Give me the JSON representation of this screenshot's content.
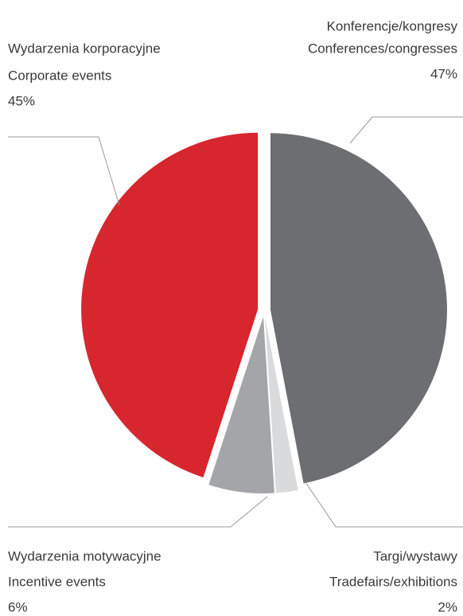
{
  "chart_data": {
    "type": "pie",
    "categories": [
      "Konferencje/kongresy",
      "Targi/wystawy",
      "Wydarzenia motywacyjne",
      "Wydarzenia korporacyjne"
    ],
    "categories_en": [
      "Conferences/congresses",
      "Tradefairs/exhibitions",
      "Incentive events",
      "Corporate events"
    ],
    "values": [
      47,
      2,
      6,
      45
    ],
    "value_labels": [
      "47%",
      "2%",
      "6%",
      "45%"
    ],
    "colors": [
      "#6d6e71",
      "#d9dadb",
      "#a3a5a8",
      "#d7262e"
    ]
  }
}
